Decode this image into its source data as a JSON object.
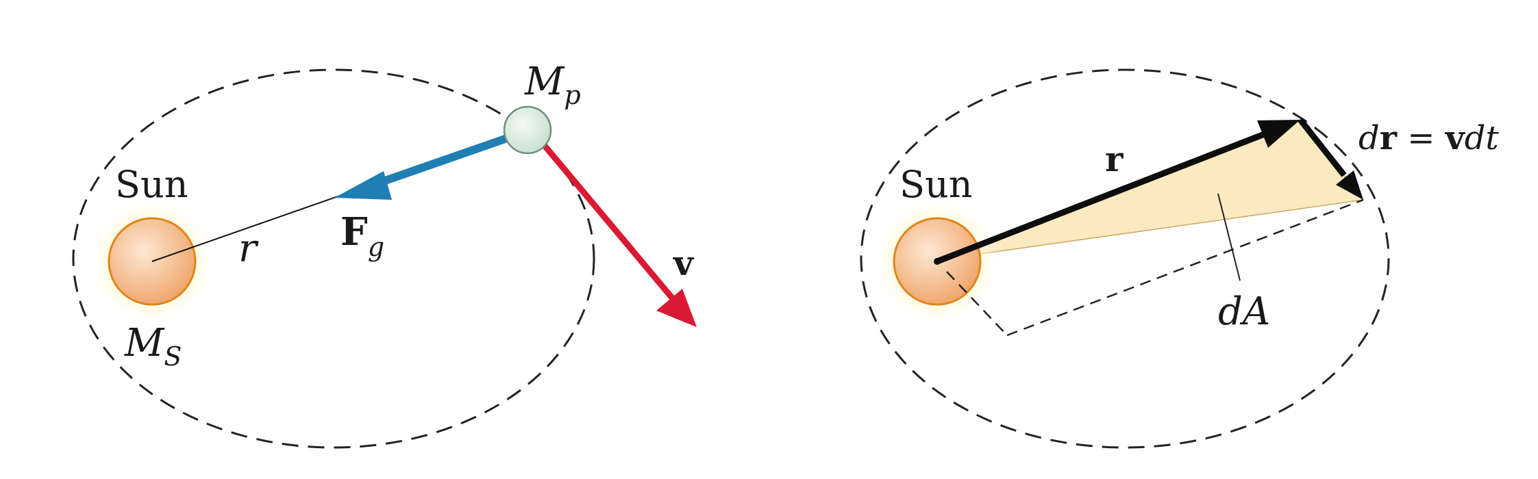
{
  "left_panel": {
    "sun_label": "Sun",
    "sun_mass_symbol": "M",
    "sun_mass_subscript": "S",
    "planet_mass_symbol": "M",
    "planet_mass_subscript": "p",
    "radius_label": "r",
    "force_symbol": "F",
    "force_subscript": "g",
    "velocity_label": "v"
  },
  "right_panel": {
    "sun_label": "Sun",
    "radius_vector_label": "r",
    "displacement_d1": "d",
    "displacement_r": "r",
    "displacement_equals": " = ",
    "displacement_v": "v",
    "displacement_dt": "dt",
    "area_label": "dA"
  },
  "colors": {
    "force_arrow": "#1f7fb3",
    "velocity_arrow": "#d91a33",
    "sun_fill": "#f2b07e",
    "sun_stroke": "#e0861a",
    "planet_fill": "#dcebe0",
    "area_fill": "#fbeac0"
  }
}
